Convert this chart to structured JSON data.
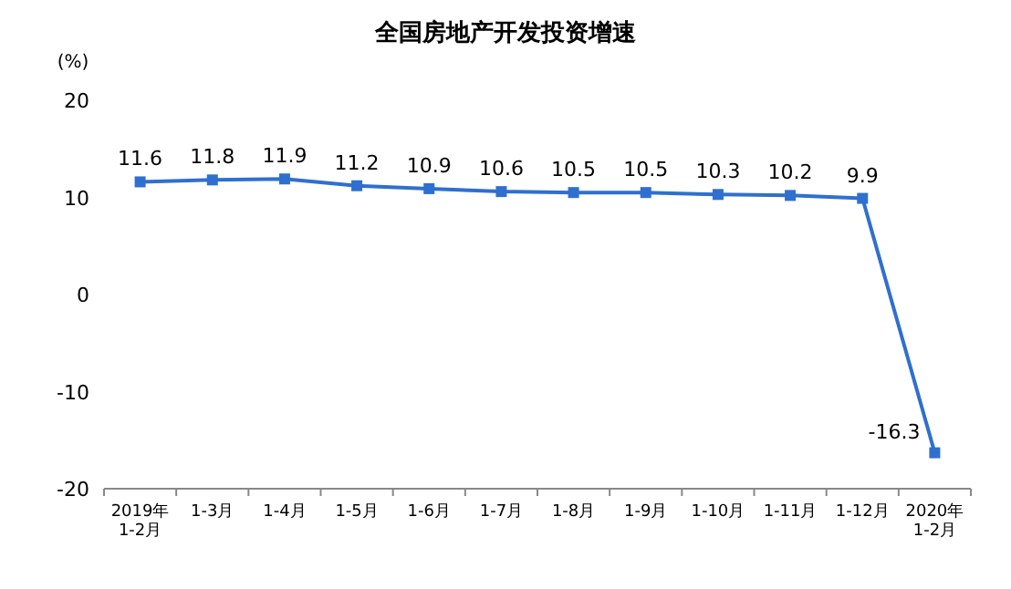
{
  "chart_data": {
    "type": "line",
    "title": "全国房地产开发投资增速",
    "ylabel": "(%)",
    "categories": [
      "2019年\n1-2月",
      "1-3月",
      "1-4月",
      "1-5月",
      "1-6月",
      "1-7月",
      "1-8月",
      "1-9月",
      "1-10月",
      "1-11月",
      "1-12月",
      "2020年\n1-2月"
    ],
    "series": [
      {
        "color": "#2f6fd0",
        "values": [
          11.6,
          11.8,
          11.9,
          11.2,
          10.9,
          10.6,
          10.5,
          10.5,
          10.3,
          10.2,
          9.9,
          -16.3
        ]
      }
    ],
    "ylim": [
      -20,
      20
    ],
    "yticks": [
      -20,
      -10,
      0,
      10,
      20
    ],
    "marker": "square",
    "data_labels": true
  }
}
